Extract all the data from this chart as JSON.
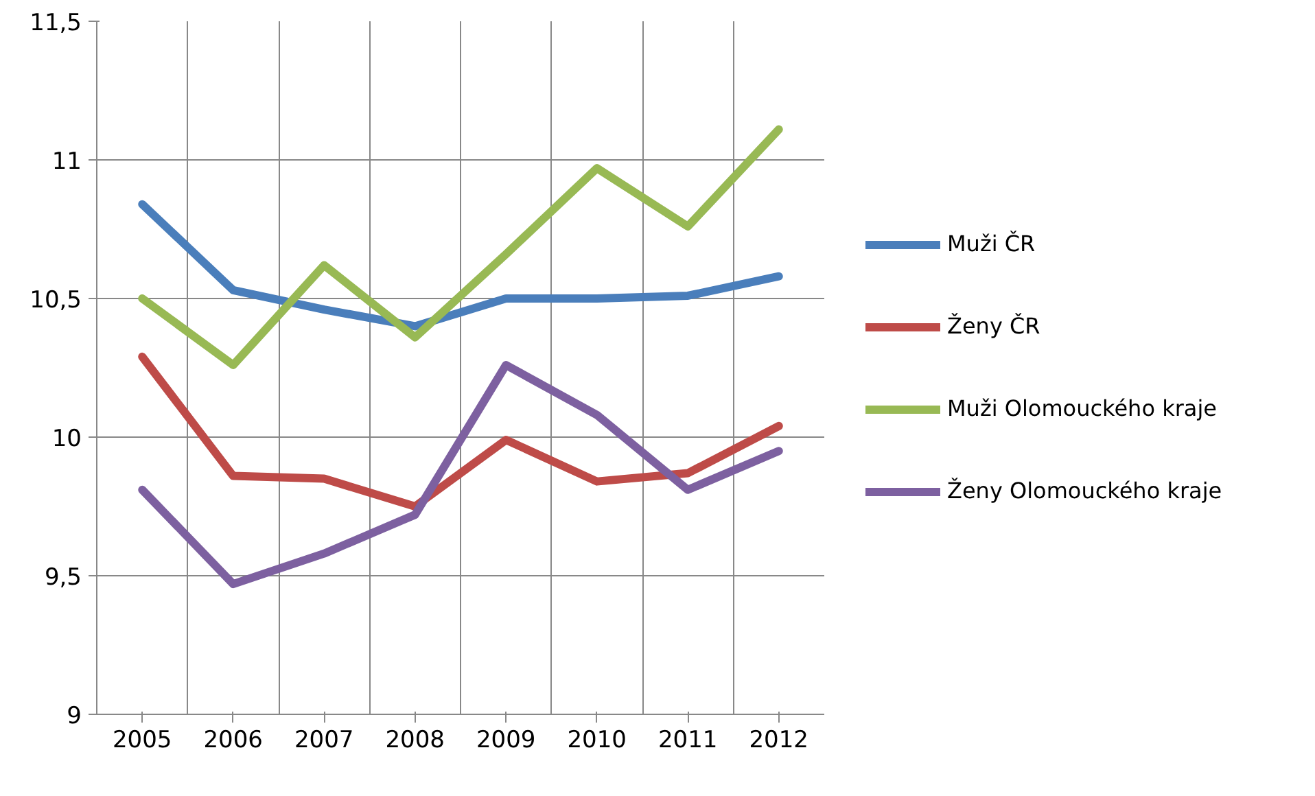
{
  "chart_data": {
    "type": "line",
    "categories": [
      "2005",
      "2006",
      "2007",
      "2008",
      "2009",
      "2010",
      "2011",
      "2012"
    ],
    "series": [
      {
        "name": "Muži ČR",
        "color": "#4a7ebb",
        "values": [
          10.84,
          10.53,
          10.46,
          10.4,
          10.5,
          10.5,
          10.51,
          10.58
        ]
      },
      {
        "name": "Ženy ČR",
        "color": "#be4b48",
        "values": [
          10.29,
          9.86,
          9.85,
          9.75,
          9.99,
          9.84,
          9.87,
          10.04
        ]
      },
      {
        "name": "Muži Olomouckého kraje",
        "color": "#98b954",
        "values": [
          10.5,
          10.26,
          10.62,
          10.36,
          10.66,
          10.97,
          10.76,
          11.11
        ]
      },
      {
        "name": "Ženy Olomouckého kraje",
        "color": "#7d60a0",
        "values": [
          9.81,
          9.47,
          9.58,
          9.72,
          10.26,
          10.08,
          9.81,
          9.95
        ]
      }
    ],
    "ylim": [
      9,
      11.5
    ],
    "yticks": [
      {
        "value": 9,
        "label": "9"
      },
      {
        "value": 9.5,
        "label": "9,5"
      },
      {
        "value": 10,
        "label": "10"
      },
      {
        "value": 10.5,
        "label": "10,5"
      },
      {
        "value": 11,
        "label": "11"
      },
      {
        "value": 11.5,
        "label": "11,5"
      }
    ],
    "grid": true,
    "legend": "right",
    "marker": "none",
    "line_style": "solid"
  }
}
